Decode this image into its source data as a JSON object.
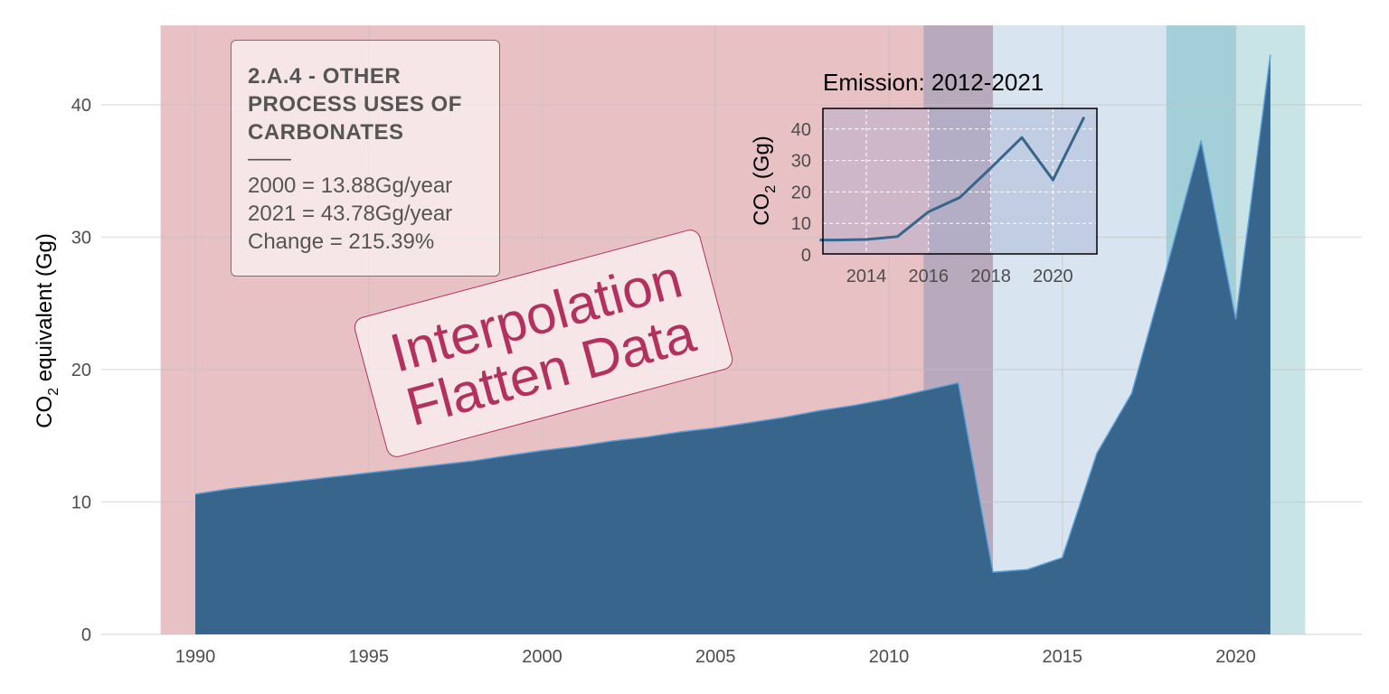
{
  "chart_data": [
    {
      "type": "area",
      "title": "",
      "xlabel": "",
      "ylabel": "CO2 equivalent (Gg)",
      "ylabel_parts": {
        "main": "CO",
        "sub": "2",
        "rest": " equivalent (Gg)"
      },
      "xlim": [
        1989,
        2022
      ],
      "ylim": [
        0,
        46
      ],
      "x_ticks": [
        "1990",
        "1995",
        "2000",
        "2005",
        "2010",
        "2015",
        "2020"
      ],
      "y_ticks": [
        "0",
        "10",
        "20",
        "30",
        "40"
      ],
      "grid": true,
      "x": [
        1990,
        1991,
        1992,
        1993,
        1994,
        1995,
        1996,
        1997,
        1998,
        1999,
        2000,
        2001,
        2002,
        2003,
        2004,
        2005,
        2006,
        2007,
        2008,
        2009,
        2010,
        2011,
        2012,
        2013,
        2014,
        2015,
        2016,
        2017,
        2018,
        2019,
        2020,
        2021
      ],
      "series": [
        {
          "values": [
            10.6,
            11.0,
            11.3,
            11.6,
            11.9,
            12.2,
            12.5,
            12.8,
            13.1,
            13.5,
            13.88,
            14.2,
            14.6,
            14.9,
            15.3,
            15.6,
            16.0,
            16.4,
            16.9,
            17.3,
            17.8,
            18.4,
            19.0,
            4.7,
            4.9,
            5.8,
            13.7,
            18.2,
            27.6,
            37.3,
            23.8,
            43.78
          ]
        }
      ],
      "bands": [
        {
          "from": 1989,
          "to": 2013,
          "color": "#e8c1c4"
        },
        {
          "from": 2011,
          "to": 2013,
          "color": "#b9a9bd"
        },
        {
          "from": 2013,
          "to": 2022,
          "color": "#d8e4ef"
        },
        {
          "from": 2018,
          "to": 2020,
          "color": "#a3cfd8"
        },
        {
          "from": 2020,
          "to": 2022,
          "color": "#c8e4e6"
        }
      ]
    },
    {
      "type": "line",
      "title": "Emission: 2012-2021",
      "ylabel": "CO2 (Gg)",
      "ylabel_parts": {
        "main": "CO",
        "sub": "2",
        "rest": " (Gg)"
      },
      "xlim": [
        2012,
        2021.5
      ],
      "ylim": [
        0,
        46
      ],
      "x_ticks": [
        "2014",
        "2016",
        "2018",
        "2020"
      ],
      "y_ticks": [
        "0",
        "10",
        "20",
        "30",
        "40"
      ],
      "grid": true,
      "x": [
        2012.5,
        2013,
        2014,
        2015,
        2016,
        2017,
        2018,
        2019,
        2020,
        2021
      ],
      "series": [
        {
          "values": [
            4.7,
            4.7,
            4.9,
            5.8,
            13.7,
            18.2,
            27.6,
            37.3,
            23.8,
            43.78
          ]
        }
      ],
      "bands": [
        {
          "from": 2012,
          "to": 2016,
          "color": "#cdb7c8"
        },
        {
          "from": 2016,
          "to": 2018,
          "color": "#b3adc6"
        },
        {
          "from": 2018,
          "to": 2021.5,
          "color": "#c1cde3"
        }
      ]
    }
  ],
  "info_box": {
    "title_lines": [
      "2.A.4 - OTHER",
      "PROCESS USES OF",
      "CARBONATES"
    ],
    "rule": "——",
    "lines": [
      "2000 = 13.88Gg/year",
      "2021 = 43.78Gg/year",
      "Change = 215.39%"
    ]
  },
  "stamp": {
    "lines": [
      "Interpolation",
      "Flatten Data"
    ]
  },
  "colors": {
    "area_fill": "#37658b",
    "area_line": "#5aa0dc",
    "inset_line": "#37658b",
    "stamp": "#b3315f",
    "grid": "#e1e1e1"
  }
}
